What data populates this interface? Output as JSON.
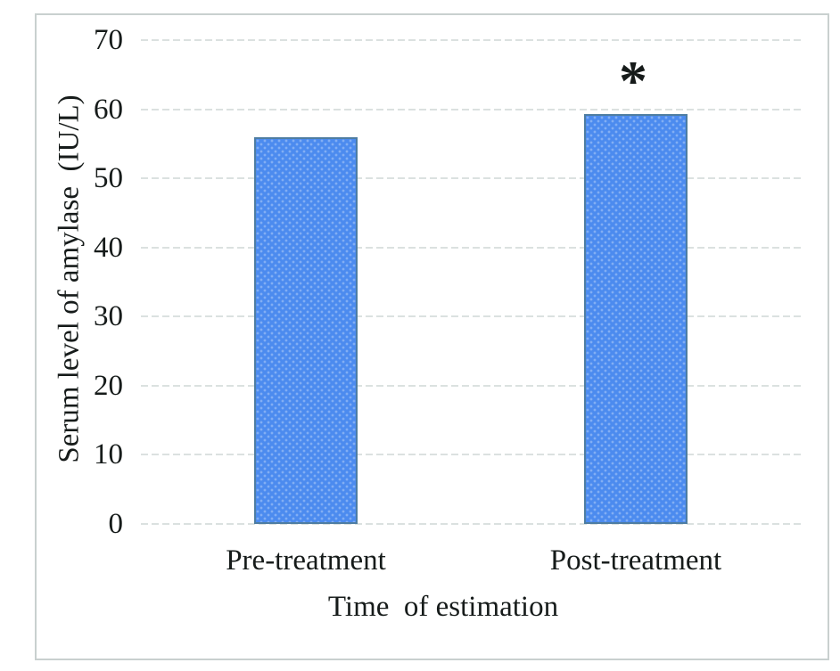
{
  "figure": {
    "background_color": "#ffffff",
    "frame_color": "#c9d0cf",
    "gridline_color": "#dbe1e0",
    "text_color": "#161b1a"
  },
  "chart_data": {
    "type": "bar",
    "title": "",
    "xlabel": "Time  of estimation",
    "ylabel": "Serum level of amylase  (IU/L)",
    "categories": [
      "Pre-treatment",
      "Post-treatment"
    ],
    "values": [
      55.9,
      59.3
    ],
    "ylim": [
      0,
      70
    ],
    "yticks": [
      0,
      10,
      20,
      30,
      40,
      50,
      60,
      70
    ],
    "grid": "horizontal-dashed",
    "legend": "none",
    "bar_fill": "#4c8bef",
    "bar_border": "#4e7da2",
    "annotations": [
      {
        "text": "*",
        "category": "Post-treatment"
      }
    ]
  }
}
